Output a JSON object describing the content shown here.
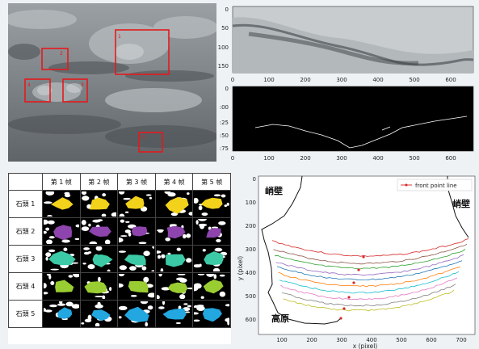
{
  "top_left_panel": {
    "box_labels": [
      "1",
      "2",
      "3",
      "4",
      "5"
    ],
    "box_color": "#e41a1c"
  },
  "top_right_plot_1": {
    "y_ticks": [
      "0",
      "50",
      "100",
      "150"
    ],
    "x_ticks": [
      "0",
      "100",
      "200",
      "300",
      "400",
      "500",
      "600"
    ]
  },
  "top_right_plot_2": {
    "y_ticks": [
      "0",
      "25",
      "50",
      "75"
    ],
    "x_ticks": [
      "0",
      "100",
      "200",
      "300",
      "400",
      "500",
      "600"
    ],
    "y_tick_partial": [
      "0",
      ":00",
      ":25",
      ":50",
      ":75"
    ]
  },
  "frames_table": {
    "headers": [
      "第 1 帧",
      "第 2 帧",
      "第 3 帧",
      "第 4 帧",
      "第 5 帧"
    ],
    "rows": [
      {
        "label": "石頭 1",
        "color": "#f2d21a"
      },
      {
        "label": "石頭 2",
        "color": "#8e44ad"
      },
      {
        "label": "石頭 3",
        "color": "#3cc9a6"
      },
      {
        "label": "石頭 4",
        "color": "#9acd32"
      },
      {
        "label": "石頭 5",
        "color": "#22a7e0"
      }
    ]
  },
  "front_plot": {
    "ylabel": "y (pixel)",
    "xlabel": "x (pixel)",
    "legend": "front point line",
    "y_ticks": [
      "0",
      "100",
      "200",
      "300",
      "400",
      "500",
      "600"
    ],
    "x_ticks": [
      "100",
      "200",
      "300",
      "400",
      "500",
      "600",
      "700"
    ],
    "annotation_left_top": "峭壁",
    "annotation_right_top": "峭壁",
    "annotation_bottom": "高原",
    "line_colors": [
      "#d62728",
      "#8c564b",
      "#2ca02c",
      "#9467bd",
      "#1f77b4",
      "#ff7f0e",
      "#17becf",
      "#e377c2",
      "#7f7f7f",
      "#bcbd22"
    ]
  }
}
